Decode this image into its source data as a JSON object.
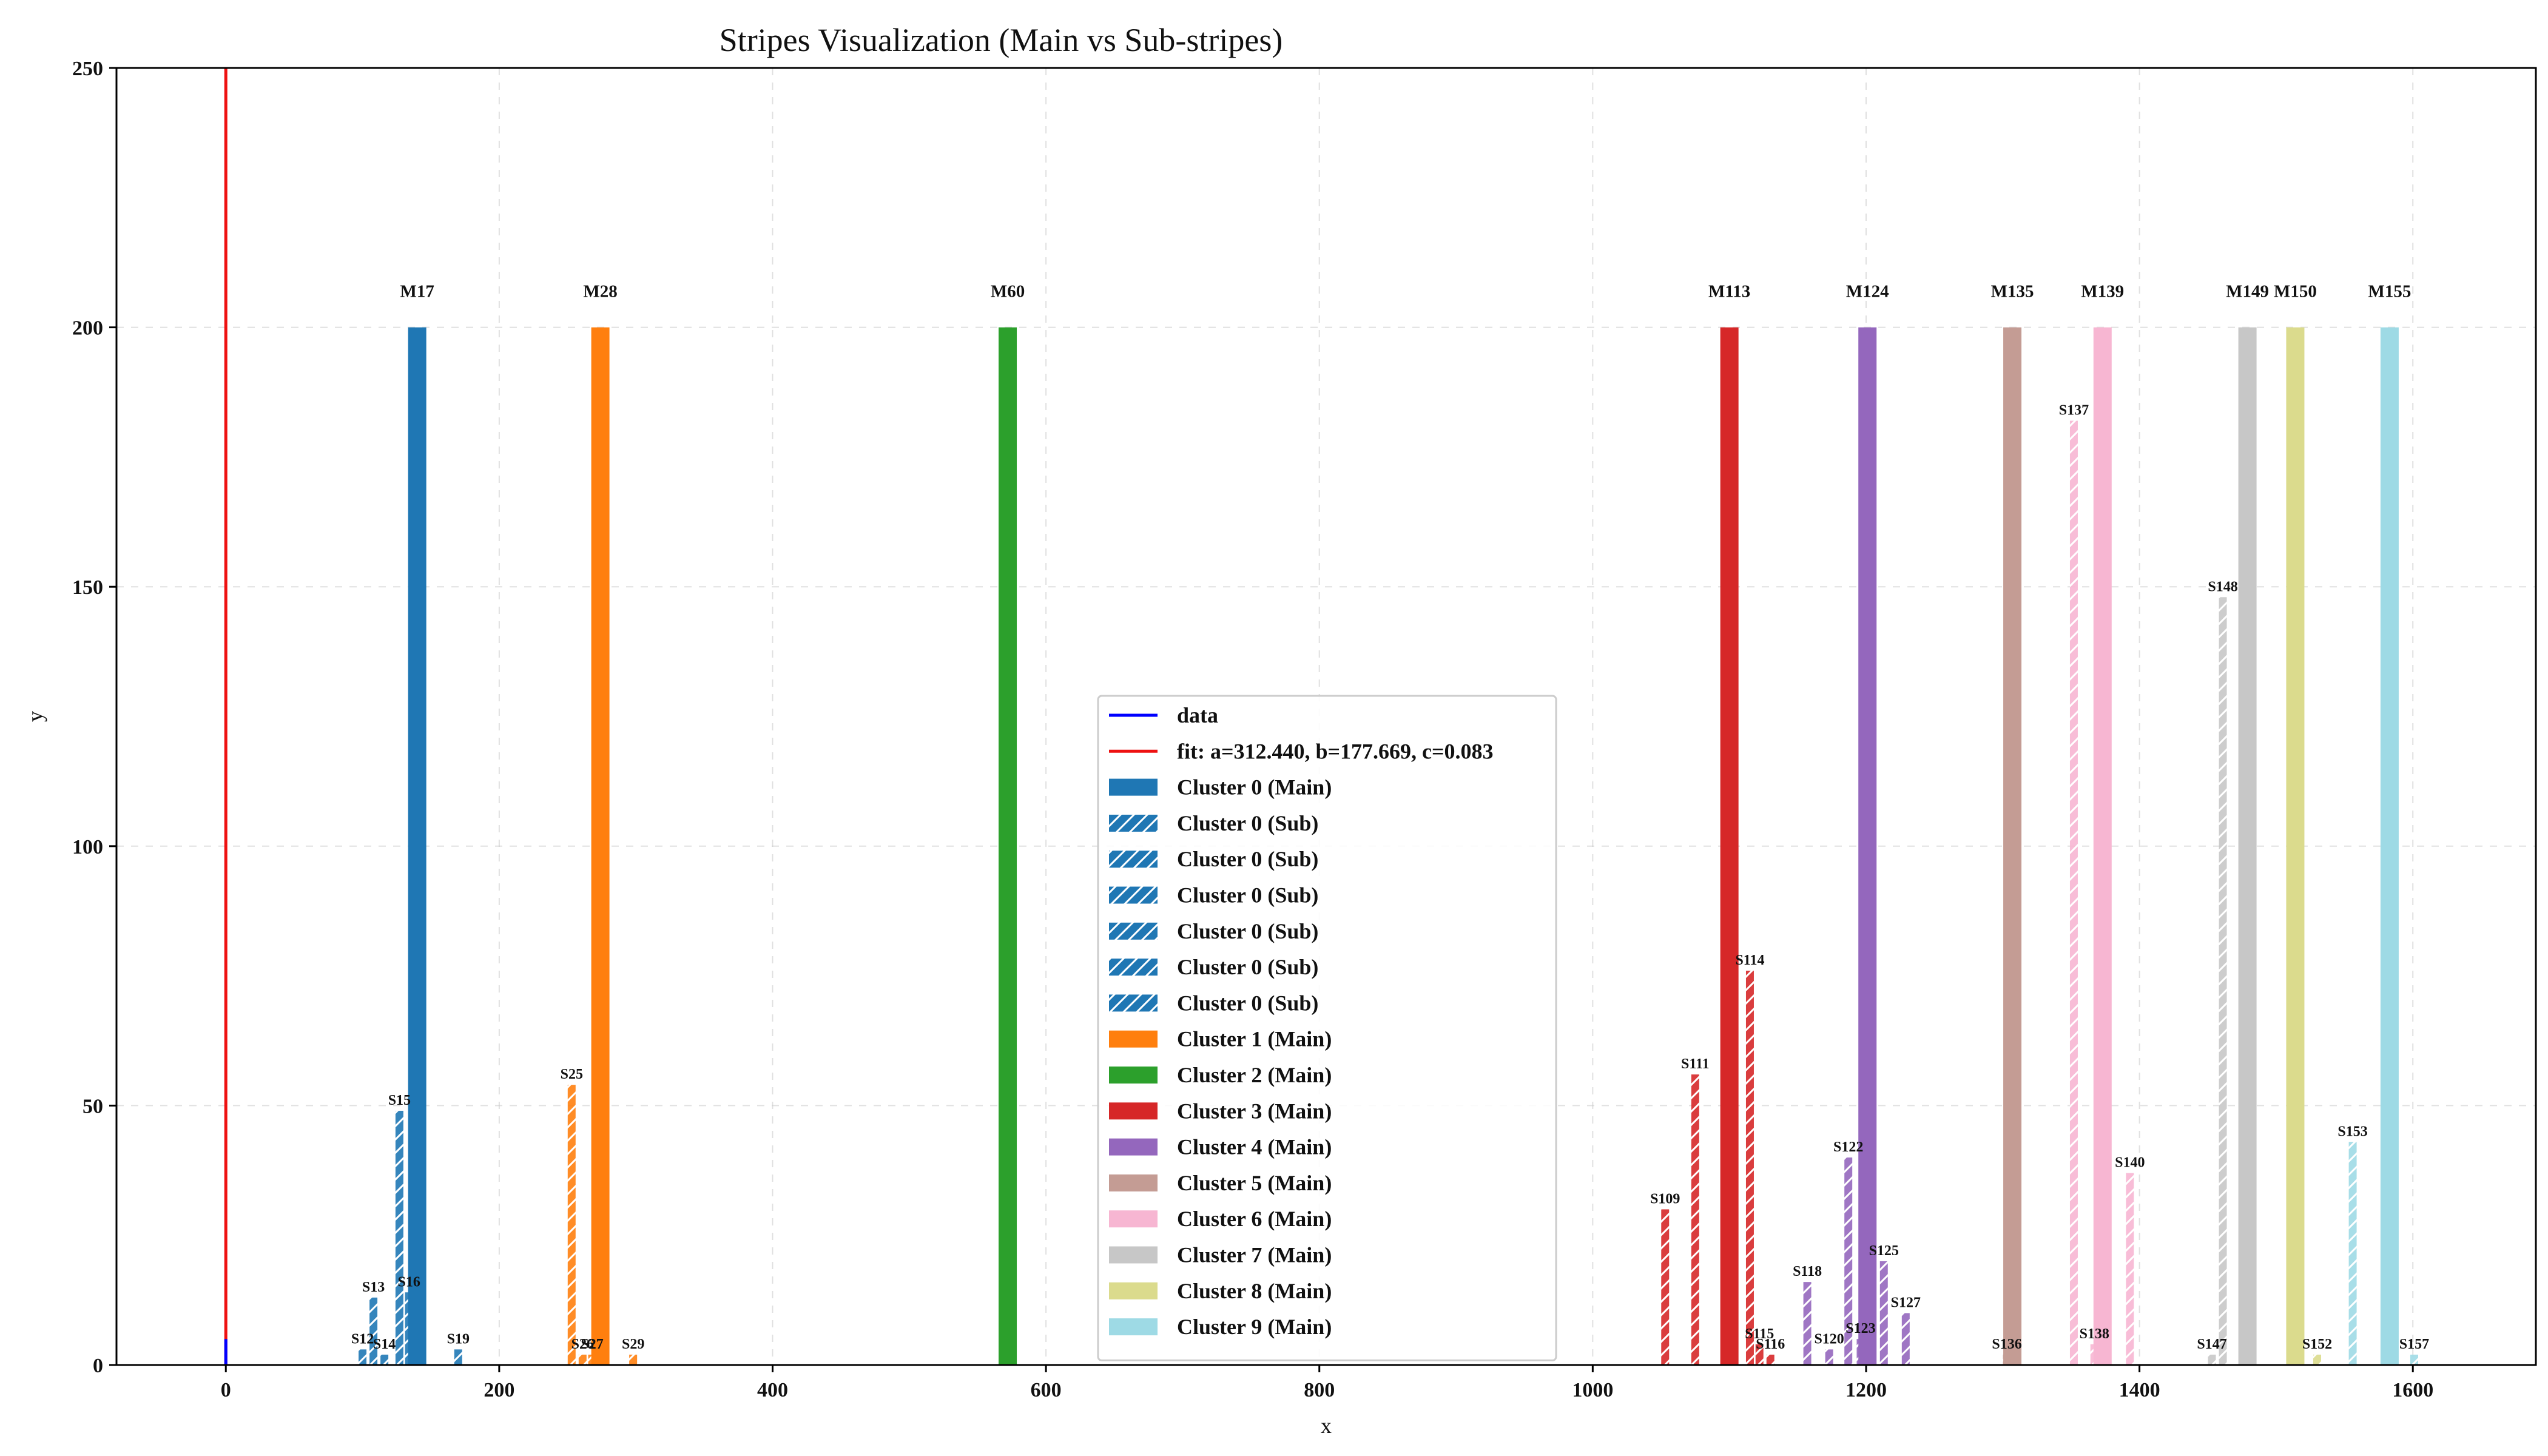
{
  "chart_data": {
    "type": "bar",
    "title": "Stripes Visualization (Main vs Sub-stripes)",
    "xlabel": "x",
    "ylabel": "y",
    "xlim": [
      -80,
      1690
    ],
    "ylim": [
      0,
      250
    ],
    "xticks": [
      0,
      200,
      400,
      600,
      800,
      1000,
      1200,
      1400,
      1600
    ],
    "yticks": [
      0,
      50,
      100,
      150,
      200,
      250
    ],
    "grid": true,
    "legend_position": "lower center",
    "data_line": {
      "name": "data",
      "color": "#0000ff",
      "points": [
        [
          0,
          0
        ],
        [
          0,
          5
        ]
      ]
    },
    "fit_line": {
      "name": "fit: a=312.440, b=177.669, c=0.083",
      "color": "#ee1111",
      "points": [
        [
          0,
          0
        ],
        [
          0,
          250
        ]
      ]
    },
    "clusters": [
      {
        "id": 0,
        "color": "#1f77b4"
      },
      {
        "id": 1,
        "color": "#ff7f0e"
      },
      {
        "id": 2,
        "color": "#2ca02c"
      },
      {
        "id": 3,
        "color": "#d62728"
      },
      {
        "id": 4,
        "color": "#9467bd"
      },
      {
        "id": 5,
        "color": "#c49c94"
      },
      {
        "id": 6,
        "color": "#f7b6d2"
      },
      {
        "id": 7,
        "color": "#c7c7c7"
      },
      {
        "id": 8,
        "color": "#dbdb8d"
      },
      {
        "id": 9,
        "color": "#9edae5"
      }
    ],
    "bars": [
      {
        "label": "S12",
        "x": 100,
        "y": 3,
        "cluster": 0,
        "kind": "sub"
      },
      {
        "label": "S13",
        "x": 108,
        "y": 13,
        "cluster": 0,
        "kind": "sub"
      },
      {
        "label": "S14",
        "x": 116,
        "y": 2,
        "cluster": 0,
        "kind": "sub"
      },
      {
        "label": "S15",
        "x": 127,
        "y": 49,
        "cluster": 0,
        "kind": "sub"
      },
      {
        "label": "S16",
        "x": 134,
        "y": 14,
        "cluster": 0,
        "kind": "sub"
      },
      {
        "label": "M17",
        "x": 140,
        "y": 200,
        "cluster": 0,
        "kind": "main"
      },
      {
        "label": "S19",
        "x": 170,
        "y": 3,
        "cluster": 0,
        "kind": "sub"
      },
      {
        "label": "S25",
        "x": 253,
        "y": 54,
        "cluster": 1,
        "kind": "sub"
      },
      {
        "label": "S26",
        "x": 261,
        "y": 2,
        "cluster": 1,
        "kind": "sub"
      },
      {
        "label": "S27",
        "x": 268,
        "y": 2,
        "cluster": 1,
        "kind": "sub"
      },
      {
        "label": "M28",
        "x": 274,
        "y": 200,
        "cluster": 1,
        "kind": "main"
      },
      {
        "label": "S29",
        "x": 298,
        "y": 2,
        "cluster": 1,
        "kind": "sub"
      },
      {
        "label": "M60",
        "x": 572,
        "y": 200,
        "cluster": 2,
        "kind": "main"
      },
      {
        "label": "S109",
        "x": 1053,
        "y": 30,
        "cluster": 3,
        "kind": "sub"
      },
      {
        "label": "S111",
        "x": 1075,
        "y": 56,
        "cluster": 3,
        "kind": "sub"
      },
      {
        "label": "M113",
        "x": 1100,
        "y": 200,
        "cluster": 3,
        "kind": "main"
      },
      {
        "label": "S114",
        "x": 1115,
        "y": 76,
        "cluster": 3,
        "kind": "sub"
      },
      {
        "label": "S115",
        "x": 1122,
        "y": 4,
        "cluster": 3,
        "kind": "sub"
      },
      {
        "label": "S116",
        "x": 1130,
        "y": 2,
        "cluster": 3,
        "kind": "sub"
      },
      {
        "label": "S118",
        "x": 1157,
        "y": 16,
        "cluster": 4,
        "kind": "sub"
      },
      {
        "label": "S120",
        "x": 1173,
        "y": 3,
        "cluster": 4,
        "kind": "sub"
      },
      {
        "label": "S122",
        "x": 1187,
        "y": 40,
        "cluster": 4,
        "kind": "sub"
      },
      {
        "label": "M124",
        "x": 1201,
        "y": 200,
        "cluster": 4,
        "kind": "main"
      },
      {
        "label": "S123",
        "x": 1196,
        "y": 5,
        "cluster": 4,
        "kind": "sub"
      },
      {
        "label": "S125",
        "x": 1213,
        "y": 20,
        "cluster": 4,
        "kind": "sub"
      },
      {
        "label": "S127",
        "x": 1229,
        "y": 10,
        "cluster": 4,
        "kind": "sub"
      },
      {
        "label": "M135",
        "x": 1307,
        "y": 200,
        "cluster": 5,
        "kind": "main"
      },
      {
        "label": "S136",
        "x": 1303,
        "y": 2,
        "cluster": 5,
        "kind": "sub"
      },
      {
        "label": "S137",
        "x": 1352,
        "y": 182,
        "cluster": 6,
        "kind": "sub"
      },
      {
        "label": "S138",
        "x": 1367,
        "y": 4,
        "cluster": 6,
        "kind": "sub"
      },
      {
        "label": "M139",
        "x": 1373,
        "y": 200,
        "cluster": 6,
        "kind": "main"
      },
      {
        "label": "S140",
        "x": 1393,
        "y": 37,
        "cluster": 6,
        "kind": "sub"
      },
      {
        "label": "S147",
        "x": 1453,
        "y": 2,
        "cluster": 7,
        "kind": "sub"
      },
      {
        "label": "S148",
        "x": 1461,
        "y": 148,
        "cluster": 7,
        "kind": "sub"
      },
      {
        "label": "M149",
        "x": 1479,
        "y": 200,
        "cluster": 7,
        "kind": "main"
      },
      {
        "label": "M150",
        "x": 1514,
        "y": 200,
        "cluster": 8,
        "kind": "main"
      },
      {
        "label": "S152",
        "x": 1530,
        "y": 2,
        "cluster": 8,
        "kind": "sub"
      },
      {
        "label": "S153",
        "x": 1556,
        "y": 43,
        "cluster": 9,
        "kind": "sub"
      },
      {
        "label": "M155",
        "x": 1583,
        "y": 200,
        "cluster": 9,
        "kind": "main"
      },
      {
        "label": "S157",
        "x": 1601,
        "y": 2,
        "cluster": 9,
        "kind": "sub"
      }
    ],
    "legend": [
      {
        "label": "data",
        "kind": "line",
        "color": "#0000ff"
      },
      {
        "label": "fit: a=312.440, b=177.669, c=0.083",
        "kind": "line",
        "color": "#ee1111"
      },
      {
        "label": "Cluster 0 (Main)",
        "kind": "main",
        "color": "#1f77b4"
      },
      {
        "label": "Cluster 0 (Sub)",
        "kind": "sub",
        "color": "#1f77b4"
      },
      {
        "label": "Cluster 0 (Sub)",
        "kind": "sub",
        "color": "#1f77b4"
      },
      {
        "label": "Cluster 0 (Sub)",
        "kind": "sub",
        "color": "#1f77b4"
      },
      {
        "label": "Cluster 0 (Sub)",
        "kind": "sub",
        "color": "#1f77b4"
      },
      {
        "label": "Cluster 0 (Sub)",
        "kind": "sub",
        "color": "#1f77b4"
      },
      {
        "label": "Cluster 0 (Sub)",
        "kind": "sub",
        "color": "#1f77b4"
      },
      {
        "label": "Cluster 1 (Main)",
        "kind": "main",
        "color": "#ff7f0e"
      },
      {
        "label": "Cluster 2 (Main)",
        "kind": "main",
        "color": "#2ca02c"
      },
      {
        "label": "Cluster 3 (Main)",
        "kind": "main",
        "color": "#d62728"
      },
      {
        "label": "Cluster 4 (Main)",
        "kind": "main",
        "color": "#9467bd"
      },
      {
        "label": "Cluster 5 (Main)",
        "kind": "main",
        "color": "#c49c94"
      },
      {
        "label": "Cluster 6 (Main)",
        "kind": "main",
        "color": "#f7b6d2"
      },
      {
        "label": "Cluster 7 (Main)",
        "kind": "main",
        "color": "#c7c7c7"
      },
      {
        "label": "Cluster 8 (Main)",
        "kind": "main",
        "color": "#dbdb8d"
      },
      {
        "label": "Cluster 9 (Main)",
        "kind": "main",
        "color": "#9edae5"
      }
    ]
  }
}
